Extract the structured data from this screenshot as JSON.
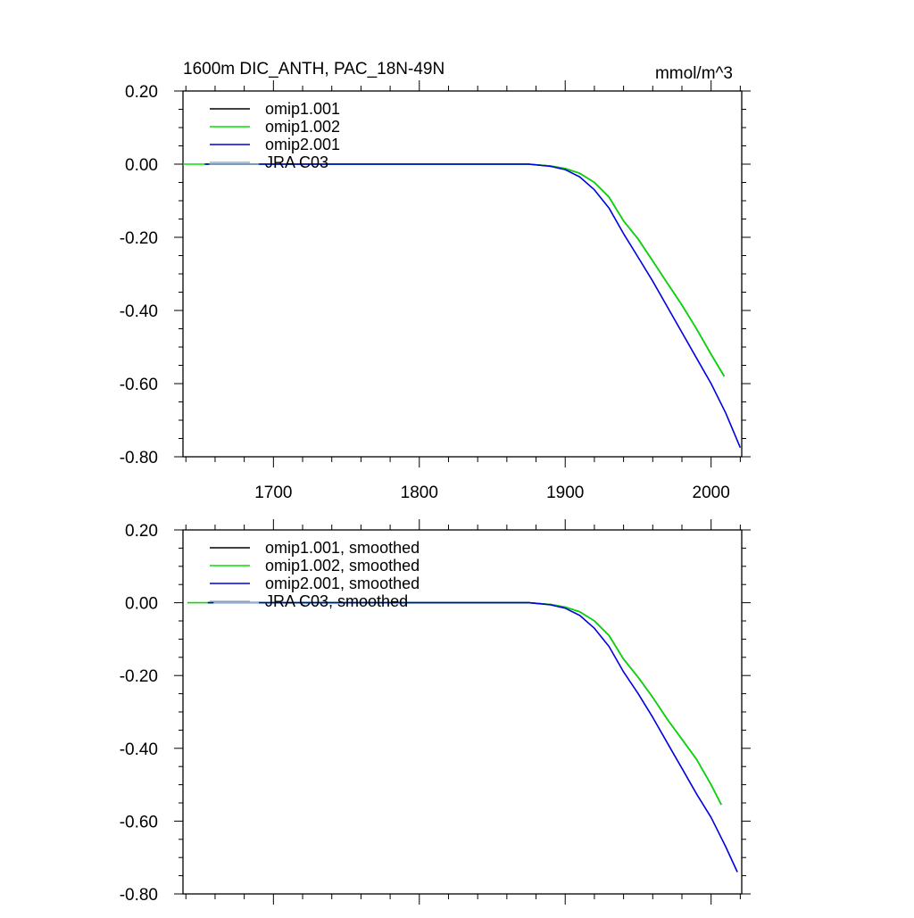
{
  "chart_data": [
    {
      "type": "line",
      "title": "1600m DIC_ANTH, PAC_18N-49N",
      "units": "mmol/m^3",
      "xlabel": "",
      "ylabel": "",
      "xlim": [
        1638,
        2021
      ],
      "ylim": [
        -0.8,
        0.2
      ],
      "x_ticks": [
        1700,
        1800,
        1900,
        2000
      ],
      "x_tick_labels": [
        "1700",
        "1800",
        "1900",
        "2000"
      ],
      "y_ticks": [
        0.2,
        0.0,
        -0.2,
        -0.4,
        -0.6,
        -0.8
      ],
      "y_tick_labels": [
        "0.20",
        "0.00",
        "-0.20",
        "-0.40",
        "-0.60",
        "-0.80"
      ],
      "legend_location": "top-left",
      "series": [
        {
          "name": "omip1.001",
          "color": "#000000",
          "x": [
            1653,
            1875,
            1890,
            1900,
            1910,
            1920,
            1930,
            1940,
            1950,
            1960,
            1970,
            1980,
            1990,
            2000,
            2009
          ],
          "y": [
            0.0,
            0.0,
            -0.005,
            -0.012,
            -0.025,
            -0.05,
            -0.09,
            -0.155,
            -0.205,
            -0.265,
            -0.325,
            -0.385,
            -0.45,
            -0.52,
            -0.58
          ]
        },
        {
          "name": "omip1.002",
          "color": "#00e000",
          "x": [
            1638,
            1875,
            1890,
            1900,
            1910,
            1920,
            1930,
            1940,
            1950,
            1960,
            1970,
            1980,
            1990,
            2000,
            2009
          ],
          "y": [
            0.0,
            0.0,
            -0.005,
            -0.012,
            -0.025,
            -0.05,
            -0.09,
            -0.155,
            -0.205,
            -0.265,
            -0.325,
            -0.385,
            -0.45,
            -0.52,
            -0.58
          ]
        },
        {
          "name": "omip2.001",
          "color": "#0000e0",
          "x": [
            1653,
            1875,
            1890,
            1900,
            1910,
            1920,
            1930,
            1940,
            1950,
            1960,
            1970,
            1980,
            1990,
            2000,
            2010,
            2020
          ],
          "y": [
            0.0,
            0.0,
            -0.006,
            -0.015,
            -0.035,
            -0.07,
            -0.12,
            -0.19,
            -0.255,
            -0.32,
            -0.39,
            -0.46,
            -0.53,
            -0.6,
            -0.68,
            -0.775
          ]
        },
        {
          "name": "JRA C03",
          "color": "#9ab0c8",
          "x": [
            1656,
            1690
          ],
          "y": [
            0.0,
            0.0
          ]
        }
      ]
    },
    {
      "type": "line",
      "title": "",
      "xlabel": "",
      "ylabel": "",
      "xlim": [
        1638,
        2021
      ],
      "ylim": [
        -0.8,
        0.2
      ],
      "x_ticks": [
        1700,
        1800,
        1900,
        2000
      ],
      "x_tick_labels": [],
      "y_ticks": [
        0.2,
        0.0,
        -0.2,
        -0.4,
        -0.6,
        -0.8
      ],
      "y_tick_labels": [
        "0.20",
        "0.00",
        "-0.20",
        "-0.40",
        "-0.60",
        "-0.80"
      ],
      "legend_location": "top-left",
      "series": [
        {
          "name": "omip1.001, smoothed",
          "color": "#000000",
          "x": [
            1655,
            1875,
            1890,
            1900,
            1910,
            1920,
            1930,
            1940,
            1950,
            1960,
            1970,
            1980,
            1990,
            2000,
            2007
          ],
          "y": [
            0.0,
            0.0,
            -0.005,
            -0.012,
            -0.025,
            -0.05,
            -0.09,
            -0.155,
            -0.205,
            -0.26,
            -0.32,
            -0.375,
            -0.43,
            -0.5,
            -0.555
          ]
        },
        {
          "name": "omip1.002, smoothed",
          "color": "#00e000",
          "x": [
            1641,
            1875,
            1890,
            1900,
            1910,
            1920,
            1930,
            1940,
            1950,
            1960,
            1970,
            1980,
            1990,
            2000,
            2007
          ],
          "y": [
            0.0,
            0.0,
            -0.005,
            -0.012,
            -0.025,
            -0.05,
            -0.09,
            -0.155,
            -0.205,
            -0.26,
            -0.32,
            -0.375,
            -0.43,
            -0.5,
            -0.555
          ]
        },
        {
          "name": "omip2.001, smoothed",
          "color": "#0000e0",
          "x": [
            1655,
            1875,
            1890,
            1900,
            1910,
            1920,
            1930,
            1940,
            1950,
            1960,
            1970,
            1980,
            1990,
            2000,
            2010,
            2018
          ],
          "y": [
            0.0,
            0.0,
            -0.006,
            -0.015,
            -0.035,
            -0.07,
            -0.12,
            -0.19,
            -0.25,
            -0.315,
            -0.385,
            -0.455,
            -0.525,
            -0.59,
            -0.67,
            -0.74
          ]
        },
        {
          "name": "JRA C03, smoothed",
          "color": "#9ab0c8",
          "x": [
            1659,
            1690
          ],
          "y": [
            0.0,
            0.0
          ]
        }
      ]
    }
  ]
}
